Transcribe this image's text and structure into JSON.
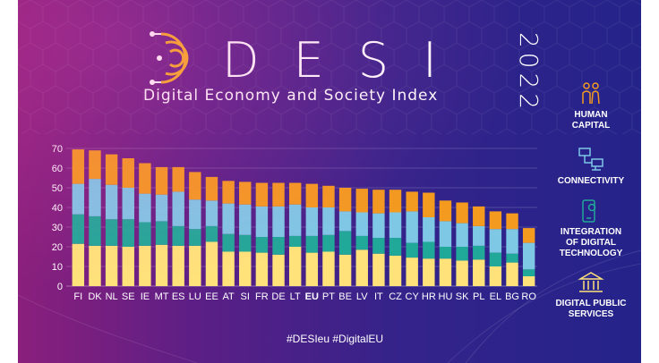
{
  "header": {
    "logo_letters": "DESI",
    "year": "2022",
    "subtitle": "Digital Economy and Society Index"
  },
  "legend": [
    {
      "label_lines": [
        "HUMAN",
        "CAPITAL"
      ],
      "icon": "people-icon",
      "color": "#f39a1f"
    },
    {
      "label_lines": [
        "CONNECTIVITY"
      ],
      "icon": "network-icon",
      "color": "#7ec8e6"
    },
    {
      "label_lines": [
        "INTEGRATION",
        "OF DIGITAL",
        "TECHNOLOGY"
      ],
      "icon": "phone-gear-icon",
      "color": "#20a898"
    },
    {
      "label_lines": [
        "DIGITAL PUBLIC",
        "SERVICES"
      ],
      "icon": "building-icon",
      "color": "#ffe37a"
    }
  ],
  "footer": {
    "hashtags": "#DESIeu  #DigitalEU"
  },
  "chart_data": {
    "type": "bar",
    "stacked": true,
    "categories": [
      "FI",
      "DK",
      "NL",
      "SE",
      "IE",
      "MT",
      "ES",
      "LU",
      "EE",
      "AT",
      "SI",
      "FR",
      "DE",
      "LT",
      "EU",
      "PT",
      "BE",
      "LV",
      "IT",
      "CZ",
      "CY",
      "HR",
      "HU",
      "SK",
      "PL",
      "EL",
      "BG",
      "RO"
    ],
    "highlight_category": "EU",
    "ylim": [
      0,
      70
    ],
    "yticks": [
      0,
      10,
      20,
      30,
      40,
      50,
      60,
      70
    ],
    "grid": true,
    "series": [
      {
        "name": "DIGITAL PUBLIC SERVICES",
        "color": "#ffe37a",
        "values": [
          21.5,
          20.5,
          20.5,
          20.0,
          20.5,
          21.0,
          20.5,
          20.5,
          22.5,
          17.5,
          17.5,
          17.0,
          16.0,
          20.0,
          17.0,
          17.5,
          16.0,
          18.5,
          16.5,
          15.5,
          14.5,
          14.0,
          14.0,
          13.0,
          13.5,
          10.0,
          12.0,
          5.0
        ]
      },
      {
        "name": "INTEGRATION OF DIGITAL TECHNOLOGY",
        "color": "#20a898",
        "values": [
          15.0,
          15.0,
          13.5,
          14.0,
          12.0,
          12.0,
          10.0,
          8.5,
          8.0,
          9.0,
          8.5,
          8.0,
          9.0,
          5.5,
          8.5,
          8.5,
          12.0,
          7.0,
          8.0,
          9.0,
          7.5,
          8.5,
          6.0,
          7.0,
          7.0,
          7.0,
          4.5,
          3.5
        ]
      },
      {
        "name": "CONNECTIVITY",
        "color": "#7ec8e6",
        "values": [
          15.5,
          19.0,
          17.5,
          16.0,
          14.5,
          13.5,
          17.5,
          15.0,
          13.0,
          15.5,
          15.5,
          15.5,
          15.5,
          16.0,
          14.5,
          14.0,
          10.0,
          12.0,
          12.5,
          13.0,
          16.0,
          12.5,
          13.0,
          12.0,
          10.0,
          12.0,
          12.5,
          13.5
        ]
      },
      {
        "name": "HUMAN CAPITAL",
        "color": "#f39a1f",
        "values": [
          17.5,
          14.5,
          15.5,
          15.0,
          15.5,
          14.0,
          12.5,
          14.0,
          12.0,
          11.5,
          11.5,
          12.0,
          12.0,
          11.0,
          12.0,
          11.0,
          12.0,
          12.0,
          12.0,
          11.5,
          10.0,
          12.5,
          10.5,
          10.5,
          10.0,
          9.0,
          8.0,
          7.5
        ]
      }
    ]
  }
}
